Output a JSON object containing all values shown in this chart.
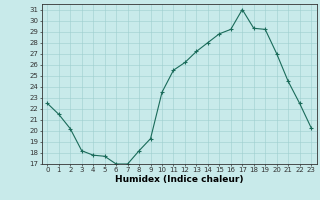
{
  "x": [
    0,
    1,
    2,
    3,
    4,
    5,
    6,
    7,
    8,
    9,
    10,
    11,
    12,
    13,
    14,
    15,
    16,
    17,
    18,
    19,
    20,
    21,
    22,
    23
  ],
  "y": [
    22.5,
    21.5,
    20.2,
    18.2,
    17.8,
    17.7,
    17.0,
    17.0,
    18.2,
    19.3,
    23.5,
    25.5,
    26.2,
    27.2,
    28.0,
    28.8,
    29.2,
    31.0,
    29.3,
    29.2,
    27.0,
    24.5,
    22.5,
    20.3
  ],
  "xlabel": "Humidex (Indice chaleur)",
  "ylim": [
    17,
    31.5
  ],
  "xlim": [
    -0.5,
    23.5
  ],
  "yticks": [
    17,
    18,
    19,
    20,
    21,
    22,
    23,
    24,
    25,
    26,
    27,
    28,
    29,
    30,
    31
  ],
  "xticks": [
    0,
    1,
    2,
    3,
    4,
    5,
    6,
    7,
    8,
    9,
    10,
    11,
    12,
    13,
    14,
    15,
    16,
    17,
    18,
    19,
    20,
    21,
    22,
    23
  ],
  "line_color": "#1a6b5a",
  "marker": "+",
  "bg_color": "#c8eaea",
  "grid_color": "#9ecece",
  "axis_color": "#333333",
  "tick_fontsize": 5,
  "xlabel_fontsize": 6.5
}
